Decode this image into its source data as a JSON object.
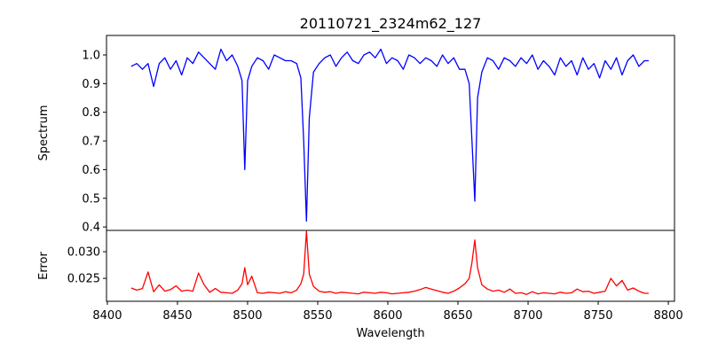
{
  "chart_data": {
    "type": "line",
    "title": "20110721_2324m62_127",
    "xlabel": "Wavelength",
    "xlim": [
      8399.4,
      8804.4
    ],
    "xticks": [
      8400,
      8450,
      8500,
      8550,
      8600,
      8650,
      8700,
      8750,
      8800
    ],
    "x": [
      8417,
      8421,
      8425,
      8429,
      8433,
      8437,
      8441,
      8445,
      8449,
      8453,
      8457,
      8461,
      8465,
      8469,
      8473,
      8477,
      8481,
      8485,
      8489,
      8493,
      8496,
      8498,
      8500,
      8503,
      8507,
      8511,
      8515,
      8519,
      8523,
      8527,
      8531,
      8535,
      8538,
      8540,
      8542,
      8544,
      8547,
      8551,
      8555,
      8559,
      8563,
      8567,
      8571,
      8575,
      8579,
      8583,
      8587,
      8591,
      8595,
      8599,
      8603,
      8607,
      8611,
      8615,
      8619,
      8623,
      8627,
      8631,
      8635,
      8639,
      8643,
      8647,
      8651,
      8655,
      8658,
      8660,
      8662,
      8664,
      8667,
      8671,
      8675,
      8679,
      8683,
      8687,
      8691,
      8695,
      8699,
      8703,
      8707,
      8711,
      8715,
      8719,
      8723,
      8727,
      8731,
      8735,
      8739,
      8743,
      8747,
      8751,
      8755,
      8759,
      8763,
      8767,
      8771,
      8775,
      8779,
      8783,
      8786
    ],
    "panels": [
      {
        "ylabel": "Spectrum",
        "ylim": [
          0.388,
          1.068
        ],
        "yticks": [
          "0.4",
          "0.5",
          "0.6",
          "0.7",
          "0.8",
          "0.9",
          "1.0"
        ],
        "series": [
          {
            "name": "Spectrum",
            "color": "#0000ff",
            "values": [
              0.96,
              0.97,
              0.95,
              0.97,
              0.89,
              0.97,
              0.99,
              0.95,
              0.98,
              0.93,
              0.99,
              0.97,
              1.01,
              0.99,
              0.97,
              0.95,
              1.02,
              0.98,
              1.0,
              0.96,
              0.91,
              0.6,
              0.91,
              0.96,
              0.99,
              0.98,
              0.95,
              1.0,
              0.99,
              0.98,
              0.98,
              0.97,
              0.92,
              0.7,
              0.42,
              0.78,
              0.94,
              0.97,
              0.99,
              1.0,
              0.96,
              0.99,
              1.01,
              0.98,
              0.97,
              1.0,
              1.01,
              0.99,
              1.02,
              0.97,
              0.99,
              0.98,
              0.95,
              1.0,
              0.99,
              0.97,
              0.99,
              0.98,
              0.96,
              1.0,
              0.97,
              0.99,
              0.95,
              0.95,
              0.9,
              0.7,
              0.49,
              0.85,
              0.94,
              0.99,
              0.98,
              0.95,
              0.99,
              0.98,
              0.96,
              0.99,
              0.97,
              1.0,
              0.95,
              0.98,
              0.96,
              0.93,
              0.99,
              0.96,
              0.98,
              0.93,
              0.99,
              0.95,
              0.97,
              0.92,
              0.98,
              0.95,
              0.99,
              0.93,
              0.98,
              1.0,
              0.96,
              0.98,
              0.98
            ]
          }
        ]
      },
      {
        "ylabel": "Error",
        "ylim": [
          0.0207,
          0.034
        ],
        "yticks": [
          "0.025",
          "0.030"
        ],
        "series": [
          {
            "name": "Error",
            "color": "#ff0000",
            "values": [
              0.0232,
              0.0228,
              0.0231,
              0.0262,
              0.0225,
              0.0238,
              0.0226,
              0.0229,
              0.0236,
              0.0226,
              0.0228,
              0.0226,
              0.026,
              0.0238,
              0.0224,
              0.0231,
              0.0224,
              0.0223,
              0.0222,
              0.0228,
              0.024,
              0.027,
              0.0238,
              0.0254,
              0.0223,
              0.0222,
              0.0224,
              0.0223,
              0.0222,
              0.0225,
              0.0223,
              0.0228,
              0.024,
              0.0258,
              0.0338,
              0.0258,
              0.0235,
              0.0226,
              0.0224,
              0.0225,
              0.0222,
              0.0224,
              0.0223,
              0.0222,
              0.0221,
              0.0224,
              0.0223,
              0.0222,
              0.0224,
              0.0223,
              0.0221,
              0.0222,
              0.0223,
              0.0224,
              0.0226,
              0.0229,
              0.0233,
              0.023,
              0.0227,
              0.0224,
              0.0222,
              0.0226,
              0.0232,
              0.024,
              0.025,
              0.028,
              0.0322,
              0.027,
              0.0238,
              0.023,
              0.0226,
              0.0228,
              0.0224,
              0.023,
              0.0222,
              0.0223,
              0.022,
              0.0225,
              0.0221,
              0.0223,
              0.0222,
              0.0221,
              0.0224,
              0.0222,
              0.0223,
              0.023,
              0.0225,
              0.0226,
              0.0222,
              0.0224,
              0.0226,
              0.025,
              0.0236,
              0.0246,
              0.0228,
              0.0232,
              0.0226,
              0.0222,
              0.0222
            ]
          }
        ]
      }
    ]
  }
}
